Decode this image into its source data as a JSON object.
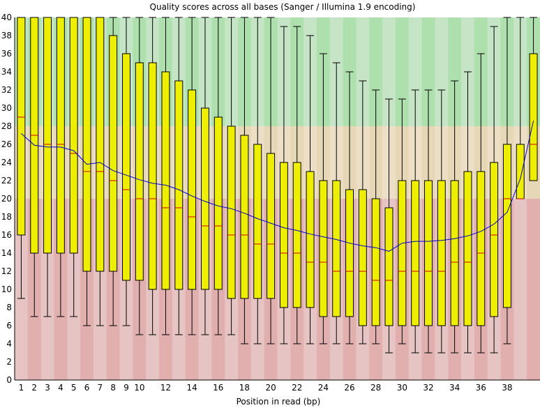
{
  "chart_data": {
    "type": "boxplot",
    "title": "Quality scores across all bases (Sanger / Illumina 1.9 encoding)",
    "xlabel": "Position in read (bp)",
    "ylabel": "",
    "ylim": [
      0,
      40
    ],
    "y_ticks": [
      "0",
      "2",
      "4",
      "6",
      "8",
      "10",
      "12",
      "14",
      "16",
      "18",
      "20",
      "22",
      "24",
      "26",
      "28",
      "30",
      "32",
      "34",
      "36",
      "38",
      "40"
    ],
    "x_ticks": [
      "1",
      "2",
      "3",
      "4",
      "5",
      "6",
      "7",
      "8",
      "9",
      "10",
      "12",
      "14",
      "16",
      "18",
      "20",
      "22",
      "24",
      "26",
      "28",
      "30",
      "32",
      "34",
      "36",
      "38"
    ],
    "x_tick_positions": [
      1,
      2,
      3,
      4,
      5,
      6,
      7,
      8,
      9,
      10,
      12,
      14,
      16,
      18,
      20,
      22,
      24,
      26,
      28,
      30,
      32,
      34,
      36,
      38
    ],
    "zones": [
      {
        "name": "good",
        "from": 28,
        "to": 40,
        "color_a": "#c6e5c6",
        "color_b": "#aee0ae"
      },
      {
        "name": "reasonable",
        "from": 20,
        "to": 28,
        "color_a": "#ecdfc6",
        "color_b": "#e6d7b6"
      },
      {
        "name": "poor",
        "from": 0,
        "to": 20,
        "color_a": "#e6c4c4",
        "color_b": "#e2afaf"
      }
    ],
    "colors": {
      "box": "#eeee00",
      "box_stroke": "#000000",
      "median": "#cc0000",
      "mean_line": "#0000cc",
      "whisker": "#000000",
      "axis": "#000000"
    },
    "positions": [
      1,
      2,
      3,
      4,
      5,
      6,
      7,
      8,
      9,
      10,
      11,
      12,
      13,
      14,
      15,
      16,
      17,
      18,
      19,
      20,
      21,
      22,
      23,
      24,
      25,
      26,
      27,
      28,
      29,
      30,
      31,
      32,
      33,
      34,
      35,
      36,
      37,
      38,
      39,
      40
    ],
    "series": [
      {
        "name": "box_upper",
        "values": [
          40,
          40,
          40,
          40,
          40,
          40,
          40,
          38,
          36,
          35,
          35,
          34,
          33,
          32,
          30,
          29,
          28,
          27,
          26,
          25,
          24,
          24,
          23,
          22,
          22,
          21,
          21,
          20,
          19,
          22,
          22,
          22,
          22,
          22,
          23,
          23,
          24,
          26,
          26,
          36
        ]
      },
      {
        "name": "box_lower",
        "values": [
          16,
          14,
          14,
          14,
          14,
          12,
          12,
          12,
          11,
          11,
          10,
          10,
          10,
          10,
          10,
          10,
          9,
          9,
          9,
          9,
          8,
          8,
          8,
          7,
          7,
          7,
          6,
          6,
          6,
          6,
          6,
          6,
          6,
          6,
          6,
          6,
          7,
          8,
          20,
          22
        ]
      },
      {
        "name": "median",
        "values": [
          29,
          27,
          26,
          26,
          25,
          23,
          23,
          22,
          21,
          20,
          20,
          19,
          19,
          18,
          17,
          17,
          16,
          16,
          15,
          15,
          14,
          14,
          13,
          13,
          12,
          12,
          12,
          11,
          11,
          12,
          12,
          12,
          12,
          13,
          13,
          14,
          16,
          20,
          20,
          26
        ]
      },
      {
        "name": "whisker_upper",
        "values": [
          40,
          40,
          40,
          40,
          40,
          40,
          40,
          40,
          40,
          40,
          40,
          40,
          40,
          40,
          40,
          40,
          40,
          40,
          40,
          40,
          39,
          39,
          38,
          36,
          35,
          34,
          33,
          32,
          31,
          31,
          32,
          32,
          32,
          33,
          34,
          36,
          39,
          40,
          40,
          40
        ]
      },
      {
        "name": "whisker_lower",
        "values": [
          9,
          7,
          7,
          7,
          7,
          6,
          6,
          6,
          6,
          5,
          5,
          5,
          5,
          5,
          5,
          5,
          5,
          4,
          4,
          4,
          4,
          4,
          4,
          4,
          4,
          4,
          4,
          4,
          3,
          4,
          3,
          3,
          3,
          3,
          3,
          3,
          3,
          4,
          20,
          22
        ]
      },
      {
        "name": "mean",
        "values": [
          27.2,
          25.9,
          25.7,
          25.7,
          25.3,
          23.8,
          24.0,
          23.1,
          22.6,
          22.1,
          21.7,
          21.5,
          21.0,
          20.3,
          19.7,
          19.2,
          18.9,
          18.4,
          17.8,
          17.3,
          16.8,
          16.5,
          16.1,
          15.8,
          15.5,
          15.1,
          14.8,
          14.6,
          14.2,
          15.1,
          15.3,
          15.3,
          15.4,
          15.6,
          15.9,
          16.4,
          17.2,
          18.5,
          22.2,
          28.6
        ]
      }
    ]
  }
}
